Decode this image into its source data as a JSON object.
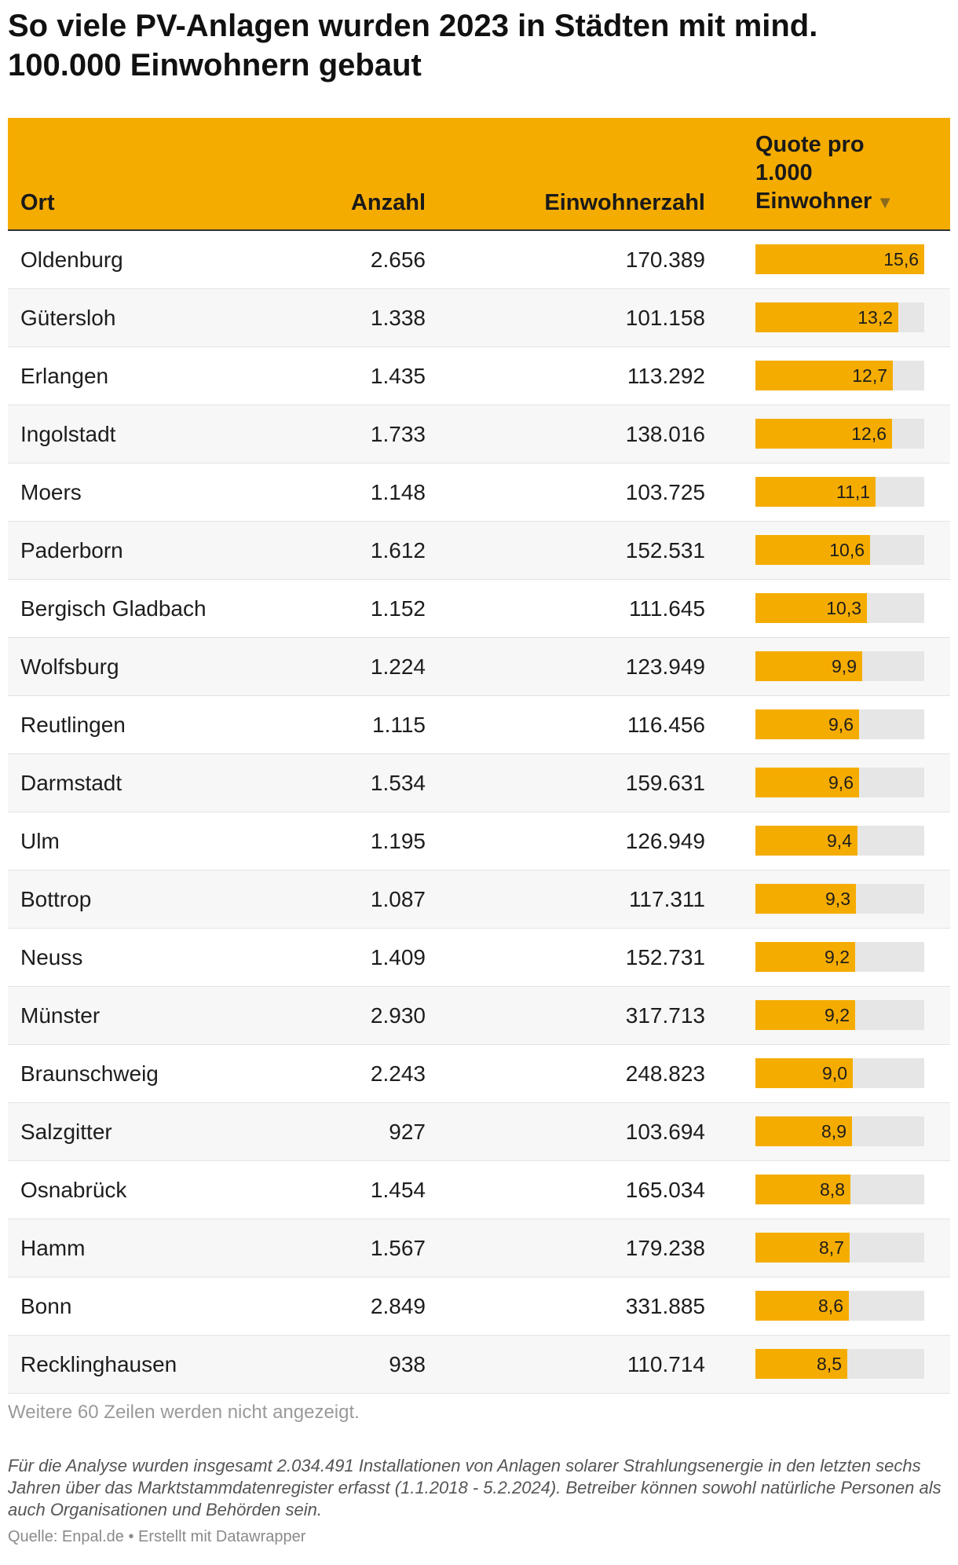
{
  "title": "So viele PV-Anlagen wurden 2023 in Städten mit mind. 100.000 Einwohnern gebaut",
  "header": {
    "ort": "Ort",
    "anzahl": "Anzahl",
    "einwohnerzahl": "Einwohnerzahl",
    "quote": "Quote pro 1.000 Einwohner",
    "sort_icon": "sort-descending-icon"
  },
  "colors": {
    "accent": "#f5ac00",
    "track": "#e6e6e6"
  },
  "chart_data": {
    "type": "table",
    "title": "So viele PV-Anlagen wurden 2023 in Städten mit mind. 100.000 Einwohnern gebaut",
    "columns": [
      "Ort",
      "Anzahl",
      "Einwohnerzahl",
      "Quote pro 1.000 Einwohner"
    ],
    "bar_max": 15.6,
    "rows": [
      {
        "ort": "Oldenburg",
        "anzahl": "2.656",
        "einwohner": "170.389",
        "quote": 15.6,
        "quote_label": "15,6"
      },
      {
        "ort": "Gütersloh",
        "anzahl": "1.338",
        "einwohner": "101.158",
        "quote": 13.2,
        "quote_label": "13,2"
      },
      {
        "ort": "Erlangen",
        "anzahl": "1.435",
        "einwohner": "113.292",
        "quote": 12.7,
        "quote_label": "12,7"
      },
      {
        "ort": "Ingolstadt",
        "anzahl": "1.733",
        "einwohner": "138.016",
        "quote": 12.6,
        "quote_label": "12,6"
      },
      {
        "ort": "Moers",
        "anzahl": "1.148",
        "einwohner": "103.725",
        "quote": 11.1,
        "quote_label": "11,1"
      },
      {
        "ort": "Paderborn",
        "anzahl": "1.612",
        "einwohner": "152.531",
        "quote": 10.6,
        "quote_label": "10,6"
      },
      {
        "ort": "Bergisch Gladbach",
        "anzahl": "1.152",
        "einwohner": "111.645",
        "quote": 10.3,
        "quote_label": "10,3"
      },
      {
        "ort": "Wolfsburg",
        "anzahl": "1.224",
        "einwohner": "123.949",
        "quote": 9.9,
        "quote_label": "9,9"
      },
      {
        "ort": "Reutlingen",
        "anzahl": "1.115",
        "einwohner": "116.456",
        "quote": 9.6,
        "quote_label": "9,6"
      },
      {
        "ort": "Darmstadt",
        "anzahl": "1.534",
        "einwohner": "159.631",
        "quote": 9.6,
        "quote_label": "9,6"
      },
      {
        "ort": "Ulm",
        "anzahl": "1.195",
        "einwohner": "126.949",
        "quote": 9.4,
        "quote_label": "9,4"
      },
      {
        "ort": "Bottrop",
        "anzahl": "1.087",
        "einwohner": "117.311",
        "quote": 9.3,
        "quote_label": "9,3"
      },
      {
        "ort": "Neuss",
        "anzahl": "1.409",
        "einwohner": "152.731",
        "quote": 9.2,
        "quote_label": "9,2"
      },
      {
        "ort": "Münster",
        "anzahl": "2.930",
        "einwohner": "317.713",
        "quote": 9.2,
        "quote_label": "9,2"
      },
      {
        "ort": "Braunschweig",
        "anzahl": "2.243",
        "einwohner": "248.823",
        "quote": 9.0,
        "quote_label": "9,0"
      },
      {
        "ort": "Salzgitter",
        "anzahl": "927",
        "einwohner": "103.694",
        "quote": 8.9,
        "quote_label": "8,9"
      },
      {
        "ort": "Osnabrück",
        "anzahl": "1.454",
        "einwohner": "165.034",
        "quote": 8.8,
        "quote_label": "8,8"
      },
      {
        "ort": "Hamm",
        "anzahl": "1.567",
        "einwohner": "179.238",
        "quote": 8.7,
        "quote_label": "8,7"
      },
      {
        "ort": "Bonn",
        "anzahl": "2.849",
        "einwohner": "331.885",
        "quote": 8.6,
        "quote_label": "8,6"
      },
      {
        "ort": "Recklinghausen",
        "anzahl": "938",
        "einwohner": "110.714",
        "quote": 8.5,
        "quote_label": "8,5"
      }
    ]
  },
  "more_rows": "Weitere 60 Zeilen werden nicht angezeigt.",
  "note": "Für die Analyse wurden insgesamt 2.034.491 Installationen von Anlagen solarer Strahlungsenergie in den letzten sechs Jahren über das Marktstammdatenregister erfasst (1.1.2018 - 5.2.2024). Betreiber können sowohl natürliche Personen als auch Organisationen und Behörden sein.",
  "source": "Quelle: Enpal.de • Erstellt mit Datawrapper"
}
